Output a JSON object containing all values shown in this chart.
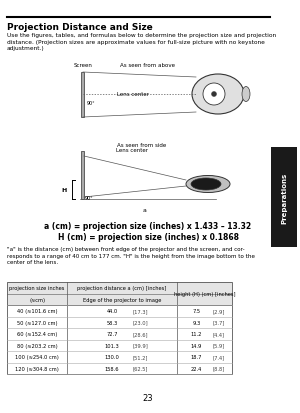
{
  "title": "Projection Distance and Size",
  "subtitle": "Use the figures, tables, and formulas below to determine the projection size and projection\ndistance. (Projection sizes are approximate values for full-size picture with no keystone\nadjustment.)",
  "formula1": "a (cm) = projection size (inches) x 1.433 – 13.32",
  "formula2": "H (cm) = projection size (inches) x 0.1868",
  "note": "\"a\" is the distance (cm) between front edge of the projector and the screen, and cor-\nresponds to a range of 40 cm to 177 cm. \"H\" is the height from the image bottom to the\ncenter of the lens.",
  "tab_col1_header1": "projection size inches",
  "tab_col1_header2": "(≈cm)",
  "tab_col2_header1": "projection distance a (cm) [inches]",
  "tab_col2_header2": "Edge of the projector to image",
  "tab_col3_header": "height (H) (cm) [inches]",
  "table_rows": [
    [
      "40 (≈101.6 cm)",
      "44.0",
      "[17.3]",
      "7.5",
      "[2.9]"
    ],
    [
      "50 (≈127.0 cm)",
      "58.3",
      "[23.0]",
      "9.3",
      "[3.7]"
    ],
    [
      "60 (≈152.4 cm)",
      "72.7",
      "[28.6]",
      "11.2",
      "[4.4]"
    ],
    [
      "80 (≈203.2 cm)",
      "101.3",
      "[39.9]",
      "14.9",
      "[5.9]"
    ],
    [
      "100 (≈254.0 cm)",
      "130.0",
      "[51.2]",
      "18.7",
      "[7.4]"
    ],
    [
      "120 (≈304.8 cm)",
      "158.6",
      "[62.5]",
      "22.4",
      "[8.8]"
    ]
  ],
  "side_tab_text": "Preparations",
  "page_number": "23",
  "bg_color": "#ffffff",
  "text_color": "#000000",
  "label_screen": "Screen",
  "label_above": "As seen from above",
  "label_lens_top": "Lens center",
  "label_side": "As seen from side",
  "label_lens_side": "Lens center",
  "label_H": "H",
  "label_a": "a",
  "label_90": "90°"
}
